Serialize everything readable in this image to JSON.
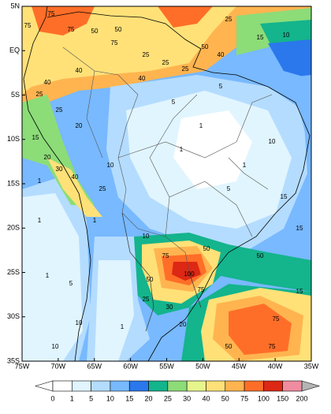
{
  "map": {
    "lon_labels": [
      "75W",
      "70W",
      "65W",
      "60W",
      "55W",
      "50W",
      "45W",
      "40W",
      "35W"
    ],
    "lat_labels": [
      "5N",
      "EQ",
      "5S",
      "10S",
      "15S",
      "20S",
      "25S",
      "30S",
      "35S"
    ],
    "contour_labels": [
      75,
      75,
      75,
      50,
      50,
      75,
      25,
      25,
      25,
      50,
      40,
      25,
      15,
      10,
      40,
      40,
      40,
      25,
      25,
      20,
      15,
      20,
      30,
      40,
      25,
      10,
      5,
      5,
      1,
      1,
      1,
      5,
      10,
      15,
      15,
      1,
      1,
      1,
      5,
      10,
      10,
      100,
      75,
      75,
      50,
      50,
      50,
      25,
      30,
      50,
      75,
      75,
      15,
      20,
      1,
      10,
      1
    ]
  },
  "colorbar": {
    "levels": [
      0,
      1,
      5,
      10,
      15,
      20,
      25,
      30,
      40,
      50,
      75,
      100,
      150,
      200
    ],
    "colors": [
      "#ffffff",
      "#e1f5ff",
      "#b4dcff",
      "#78b9ff",
      "#2a78ec",
      "#14b48c",
      "#8cdc78",
      "#e6f58c",
      "#ffe178",
      "#ffb450",
      "#ff6e28",
      "#dc2814",
      "#f08ca0"
    ],
    "under_color": "#ffffff",
    "over_color": "#b4b4b4"
  }
}
